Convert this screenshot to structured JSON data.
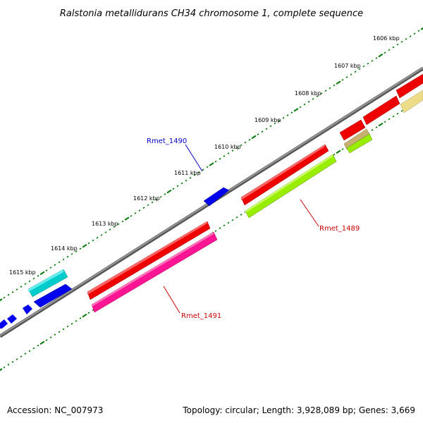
{
  "title": "Ralstonia metallidurans CH34 chromosome 1, complete sequence",
  "tick_labels": [
    "1606 kbp",
    "1607 kbp",
    "1608 kbp",
    "1609 kbp",
    "1610 kbp",
    "1611 kbp",
    "1612 kbp",
    "1613 kbp",
    "1614 kbp",
    "1615 kbp"
  ],
  "gene_labels": [
    {
      "text": "Rmet_1490",
      "color": "#0000cc"
    },
    {
      "text": "Rmet_1489",
      "color": "#cc0000"
    },
    {
      "text": "Rmet_1491",
      "color": "#cc0000"
    }
  ],
  "footer": {
    "accession": "Accession: NC_007973",
    "summary": "Topology: circular; Length: 3,928,089 bp; Genes: 3,669"
  },
  "colors": {
    "backbone": "#808080",
    "forward_gene": "#ee0000",
    "blue_gene": "#0000ee",
    "cyan_gene": "#00cccc",
    "magenta_gene": "#ff1493",
    "lime_gene": "#99ee00",
    "khaki_gene": "#eedd88",
    "tick": "#007700"
  }
}
